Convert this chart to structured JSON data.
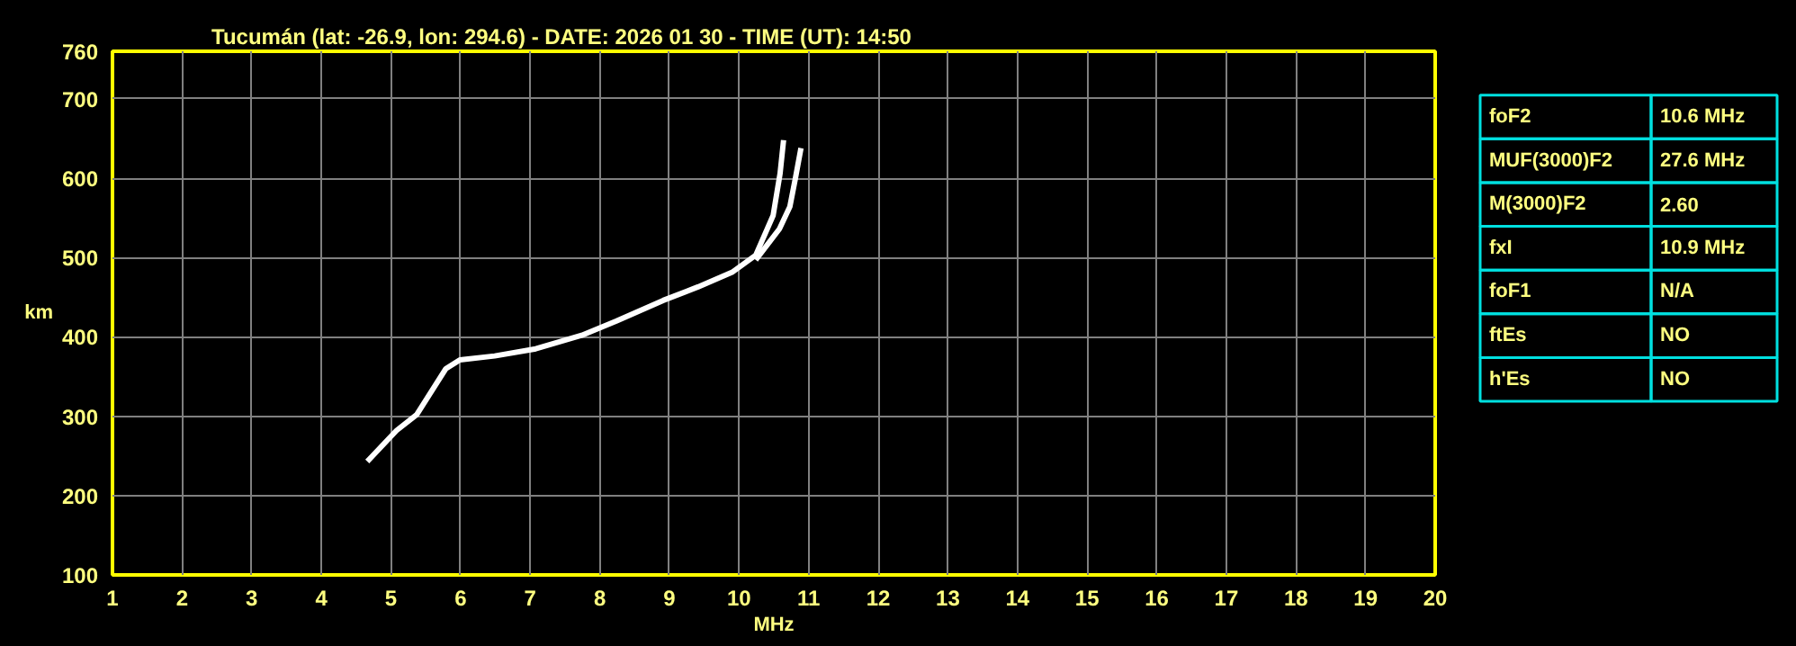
{
  "chart_data": [
    {
      "type": "line",
      "title": "Tucumán (lat: -26.9, lon: 294.6) - DATE: 2026 01 30 - TIME (UT): 14:50",
      "xlabel": "MHz",
      "ylabel": "km",
      "xlim": [
        1,
        20
      ],
      "ylim": [
        100,
        760
      ],
      "xticks": [
        1,
        2,
        3,
        4,
        5,
        6,
        7,
        8,
        9,
        10,
        11,
        12,
        13,
        14,
        15,
        16,
        17,
        18,
        19,
        20
      ],
      "yticks": [
        100,
        200,
        300,
        400,
        500,
        600,
        700,
        760
      ],
      "grid": true,
      "marker": "none",
      "line_style": "solid",
      "series": [
        {
          "color": "#ffffff",
          "x": [
            4.66,
            5.08,
            5.37,
            5.79,
            5.99,
            6.49,
            7.08,
            7.74,
            8.24,
            8.91,
            9.41,
            9.91,
            10.24,
            10.49,
            10.59,
            10.64
          ],
          "values": [
            243,
            282,
            302,
            360,
            371,
            376,
            385,
            402,
            420,
            446,
            463,
            482,
            503,
            553,
            606,
            648
          ]
        },
        {
          "color": "#ffffff",
          "x": [
            10.24,
            10.58,
            10.73,
            10.81,
            10.89
          ],
          "values": [
            497,
            536,
            564,
            600,
            638
          ]
        }
      ]
    },
    {
      "type": "other",
      "annotations": [
        "foF2",
        "10.6 MHz",
        "MUF(3000)F2",
        "27.6 MHz",
        "M(3000)F2",
        "2.60",
        "fxI",
        "10.9 MHz",
        "foF1",
        "N/A",
        "ftEs",
        "NO",
        "h'Es",
        "NO"
      ]
    }
  ]
}
